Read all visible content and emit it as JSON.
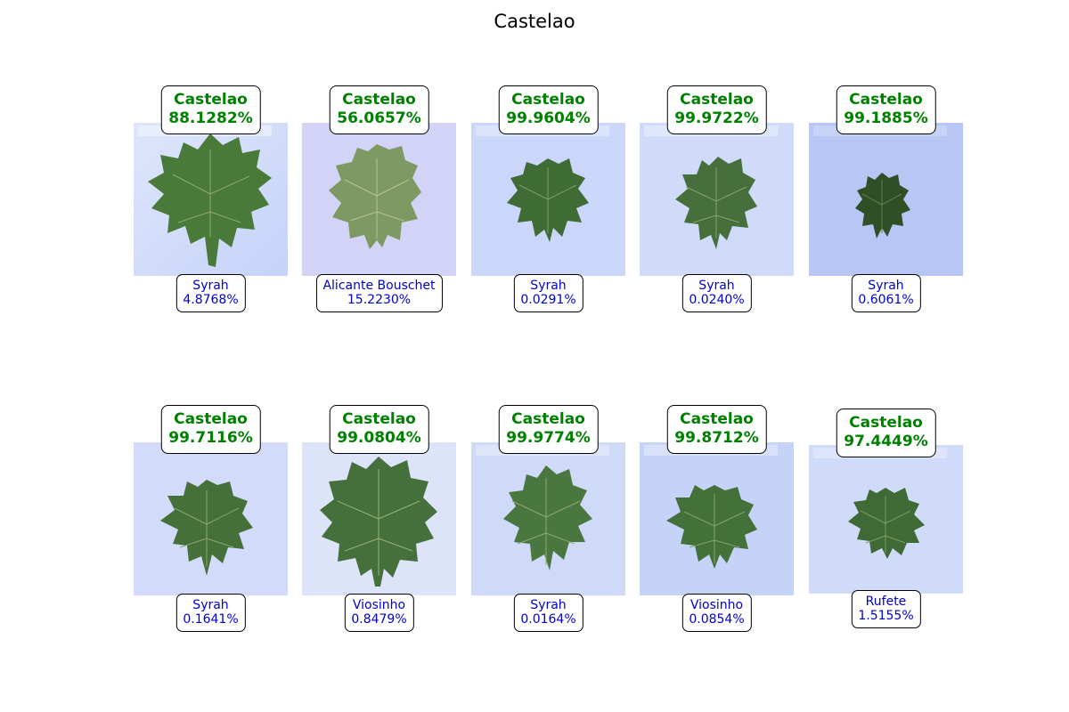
{
  "figure_title": "Castelao",
  "colors": {
    "top_prediction": "#008000",
    "second_prediction": "#0000cc"
  },
  "panels": [
    {
      "top_label": "Castelao",
      "top_percent": "88.1282%",
      "second_label": "Syrah",
      "second_percent": "4.8768%",
      "leaf_icon": "large-leaf-icon"
    },
    {
      "top_label": "Castelao",
      "top_percent": "56.0657%",
      "second_label": "Alicante Bouschet",
      "second_percent": "15.2230%",
      "leaf_icon": "pale-leaf-icon"
    },
    {
      "top_label": "Castelao",
      "top_percent": "99.9604%",
      "second_label": "Syrah",
      "second_percent": "0.0291%",
      "leaf_icon": "lobed-leaf-icon"
    },
    {
      "top_label": "Castelao",
      "top_percent": "99.9722%",
      "second_label": "Syrah",
      "second_percent": "0.0240%",
      "leaf_icon": "leaf-icon"
    },
    {
      "top_label": "Castelao",
      "top_percent": "99.1885%",
      "second_label": "Syrah",
      "second_percent": "0.6061%",
      "leaf_icon": "small-dark-leaf-icon"
    },
    {
      "top_label": "Castelao",
      "top_percent": "99.7116%",
      "second_label": "Syrah",
      "second_percent": "0.1641%",
      "leaf_icon": "leaf-icon"
    },
    {
      "top_label": "Castelao",
      "top_percent": "99.0804%",
      "second_label": "Viosinho",
      "second_percent": "0.8479%",
      "leaf_icon": "large-leaf-icon"
    },
    {
      "top_label": "Castelao",
      "top_percent": "99.9774%",
      "second_label": "Syrah",
      "second_percent": "0.0164%",
      "leaf_icon": "lobed-leaf-icon"
    },
    {
      "top_label": "Castelao",
      "top_percent": "99.8712%",
      "second_label": "Viosinho",
      "second_percent": "0.0854%",
      "leaf_icon": "leaf-icon"
    },
    {
      "top_label": "Castelao",
      "top_percent": "97.4449%",
      "second_label": "Rufete",
      "second_percent": "1.5155%",
      "leaf_icon": "small-leaf-icon"
    }
  ]
}
